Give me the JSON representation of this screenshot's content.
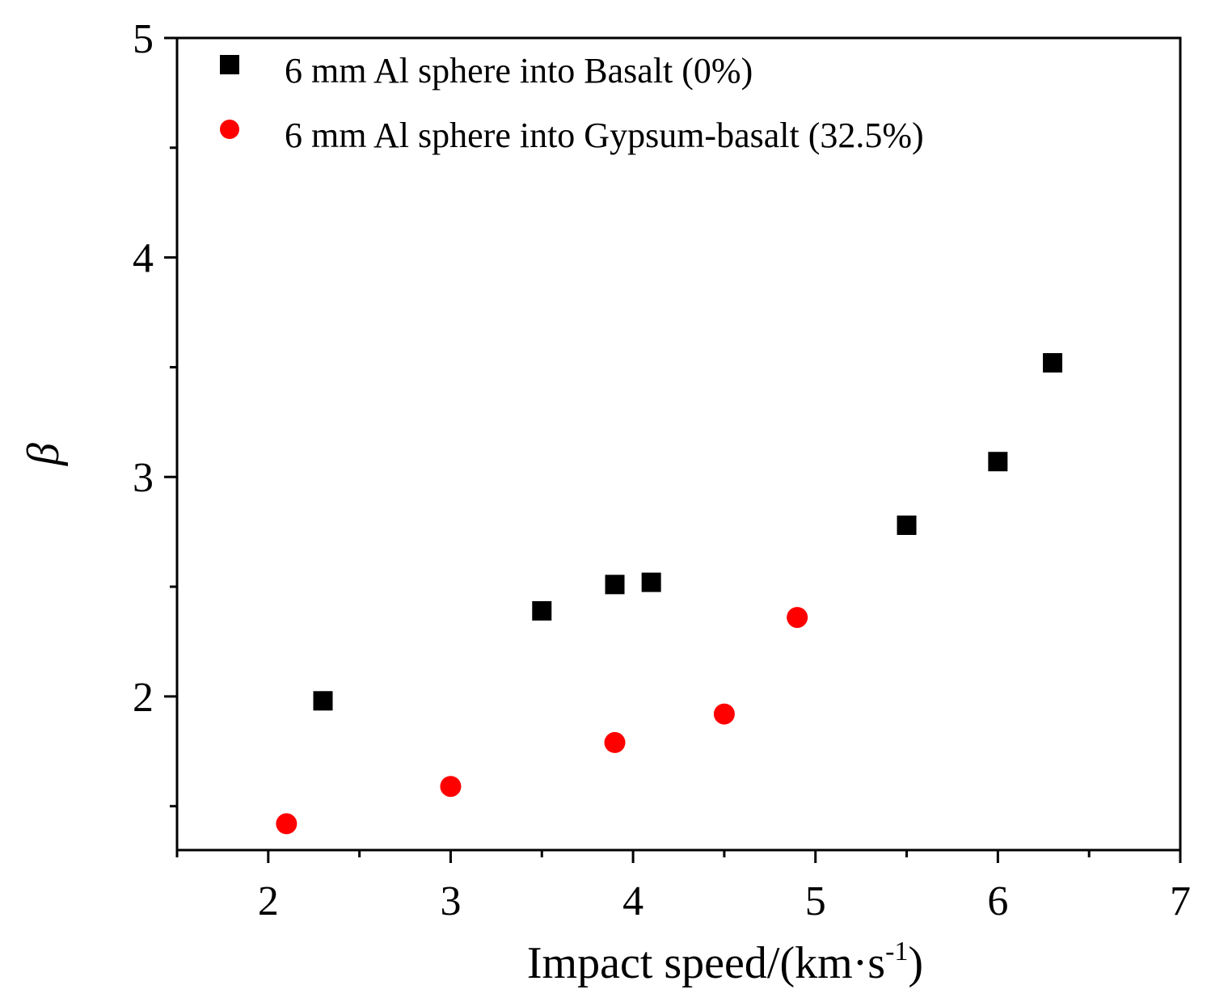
{
  "chart_data": {
    "type": "scatter",
    "title": "",
    "xlabel": "Impact speed/(km·s",
    "xlabel_sup": "-1",
    "xlabel_close": ")",
    "ylabel": "β",
    "xlim": [
      1.5,
      7
    ],
    "ylim": [
      1.3,
      5
    ],
    "x_ticks": [
      "2",
      "3",
      "4",
      "5",
      "6",
      "7"
    ],
    "y_ticks": [
      "2",
      "3",
      "4",
      "5"
    ],
    "legend_position": "top-left",
    "series": [
      {
        "name": "6 mm Al sphere into Basalt (0%)",
        "marker": "square",
        "color": "#000000",
        "x": [
          2.3,
          3.5,
          3.9,
          4.1,
          5.5,
          6.0,
          6.3
        ],
        "y": [
          1.98,
          2.39,
          2.51,
          2.52,
          2.78,
          3.07,
          3.52
        ]
      },
      {
        "name": "6 mm Al sphere into Gypsum-basalt (32.5%)",
        "marker": "circle",
        "color": "#ff0000",
        "x": [
          2.1,
          3.0,
          3.9,
          4.5,
          4.9
        ],
        "y": [
          1.42,
          1.59,
          1.79,
          1.92,
          2.36
        ]
      }
    ]
  }
}
